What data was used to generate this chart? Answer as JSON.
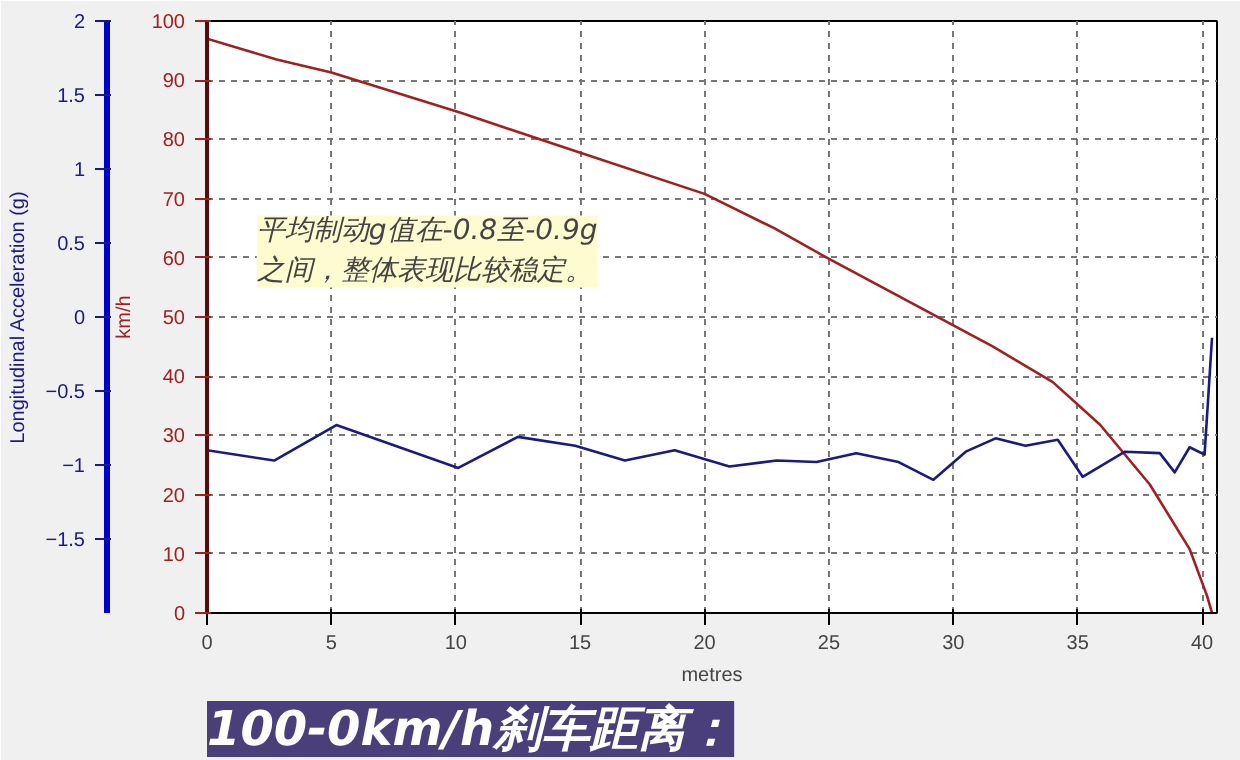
{
  "chart_data": {
    "type": "line",
    "title": "100-0km/h刹车距离：",
    "xlabel": "metres",
    "ylabel": "km/h",
    "y2label": "Longitudinal Acceleration (g)",
    "xlim": [
      0,
      40.6
    ],
    "xticks": [
      0,
      5,
      10,
      15,
      20,
      25,
      30,
      35,
      40
    ],
    "ylim": [
      0,
      100
    ],
    "yticks": [
      0,
      10,
      20,
      30,
      40,
      50,
      60,
      70,
      80,
      90,
      100
    ],
    "y2lim": [
      -2,
      2
    ],
    "y2ticks": [
      -1.5,
      -1,
      -0.5,
      0,
      0.5,
      1,
      1.5,
      2
    ],
    "grid": true,
    "line_style": "solid",
    "marker": "none",
    "annotations": [
      "平均制动g值在-0.8至-0.9g\n之间，整体表现比较稳定。"
    ],
    "series": [
      {
        "color": "#a02020",
        "x": [
          0,
          2.8,
          5,
          10.2,
          14.1,
          20,
          22.8,
          24.8,
          31.6,
          34,
          35.9,
          37.9,
          39.5,
          40.2,
          40.4
        ],
        "values": [
          97,
          93.5,
          91.3,
          84.5,
          79,
          70.8,
          65,
          60.3,
          45,
          39,
          31.8,
          21.7,
          10.8,
          2.9,
          0
        ]
      },
      {
        "color": "#1a1a80",
        "axis": "y2",
        "x": [
          0,
          2.7,
          5.2,
          10.1,
          12.5,
          14.8,
          16.8,
          18.8,
          21,
          22.9,
          24.5,
          26.1,
          27.8,
          29.2,
          30.5,
          31.7,
          32.9,
          34.2,
          35.2,
          36.9,
          38.3,
          38.9,
          39.5,
          40.1,
          40.4
        ],
        "values": [
          -0.9,
          -0.97,
          -0.73,
          -1.02,
          -0.81,
          -0.87,
          -0.97,
          -0.9,
          -1.01,
          -0.97,
          -0.98,
          -0.92,
          -0.98,
          -1.1,
          -0.91,
          -0.82,
          -0.87,
          -0.83,
          -1.08,
          -0.91,
          -0.92,
          -1.05,
          -0.88,
          -0.93,
          -0.14
        ]
      }
    ]
  }
}
